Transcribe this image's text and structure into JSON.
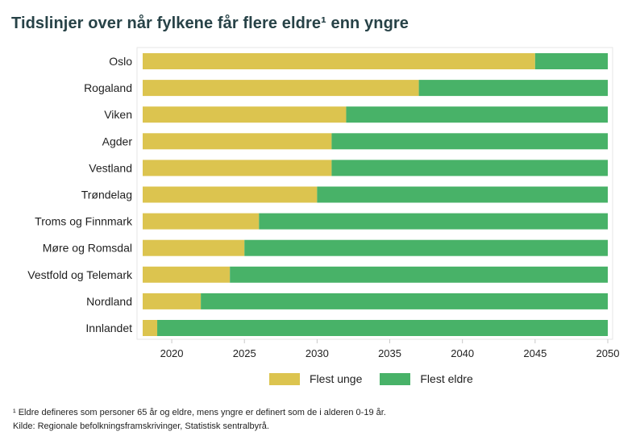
{
  "chart_data": {
    "type": "bar",
    "orientation": "horizontal",
    "stacked": true,
    "title": "Tidslinjer over når fylkene får flere eldre¹ enn yngre",
    "categories": [
      "Oslo",
      "Rogaland",
      "Viken",
      "Agder",
      "Vestland",
      "Trøndelag",
      "Troms og Finnmark",
      "Møre og Romsdal",
      "Vestfold og Telemark",
      "Nordland",
      "Innlandet"
    ],
    "crossover_year": [
      2045,
      2037,
      2032,
      2031,
      2031,
      2030,
      2026,
      2025,
      2024,
      2022,
      2019
    ],
    "start_year": 2018,
    "end_year": 2050,
    "series": [
      {
        "name": "Flest unge",
        "color": "#dcc44f"
      },
      {
        "name": "Flest eldre",
        "color": "#48b268"
      }
    ],
    "xlim": [
      2018,
      2050
    ],
    "xticks": [
      2020,
      2025,
      2030,
      2035,
      2040,
      2045,
      2050
    ],
    "grid": false,
    "legend": "bottom"
  },
  "footnotes": {
    "note1": "¹ Eldre defineres som personer 65 år og eldre, mens yngre er definert som de i alderen 0-19 år.",
    "source": "Kilde: Regionale befolkningsframskrivinger, Statistisk sentralbyrå."
  }
}
